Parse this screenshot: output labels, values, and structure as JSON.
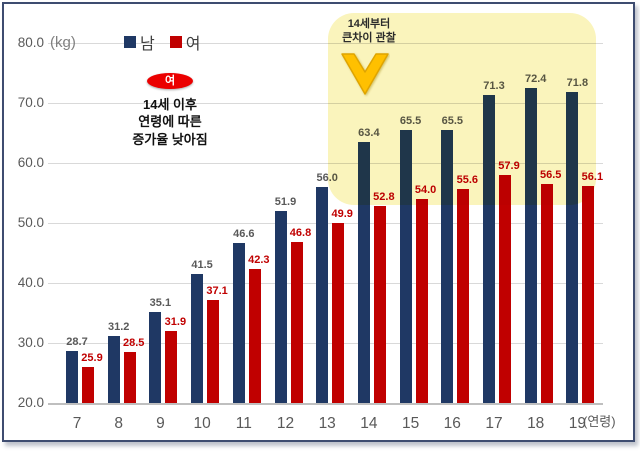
{
  "chart_data": {
    "type": "bar",
    "title": "",
    "xlabel": "(연령)",
    "ylabel": "(kg)",
    "categories": [
      "7",
      "8",
      "9",
      "10",
      "11",
      "12",
      "13",
      "14",
      "15",
      "16",
      "17",
      "18",
      "19"
    ],
    "series": [
      {
        "name": "남",
        "color": "#1F3864",
        "label_color": "#595959",
        "values": [
          28.7,
          31.2,
          35.1,
          41.5,
          46.6,
          51.9,
          56.0,
          63.4,
          65.5,
          65.5,
          71.3,
          72.4,
          71.8
        ]
      },
      {
        "name": "여",
        "color": "#C00000",
        "label_color": "#C00000",
        "values": [
          25.9,
          28.5,
          31.9,
          37.1,
          42.3,
          46.8,
          49.9,
          52.8,
          54.0,
          55.6,
          57.9,
          56.5,
          56.1
        ]
      }
    ],
    "ylim": [
      20,
      80
    ],
    "ytick_labels": [
      "20.0",
      "30.0",
      "40.0",
      "50.0",
      "60.0",
      "70.0",
      "80.0"
    ],
    "grid": true,
    "legend_position": "top-center",
    "value_labels": true
  },
  "axis": {
    "unit_y": "(kg)",
    "unit_x": "(연령)"
  },
  "legend": {
    "items": [
      {
        "label": "남",
        "color": "#1F3864"
      },
      {
        "label": "여",
        "color": "#C00000"
      }
    ]
  },
  "annotations": {
    "badge": {
      "label": "여",
      "color": "#EB0000"
    },
    "note_lines": [
      "14세 이후",
      "연령에 따른",
      "증가율 낮아짐"
    ],
    "highlight": {
      "lines": [
        "14세부터",
        "큰차이 관찰"
      ],
      "range_categories": [
        "14",
        "15",
        "16",
        "17",
        "18",
        "19"
      ],
      "box_color": "#FAF4BC",
      "arrow_color": "#FFC000",
      "arrow_stroke": "#DFA400"
    }
  }
}
